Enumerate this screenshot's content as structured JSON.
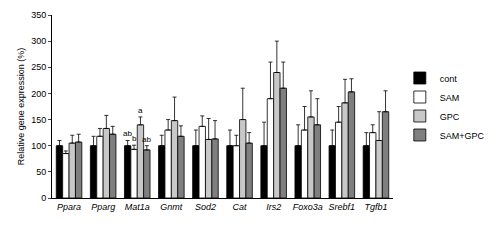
{
  "chart_data": {
    "type": "bar",
    "y_label": "Relative gene expression (%)",
    "categories": [
      "Ppara",
      "Pparg",
      "Mat1a",
      "Gnmt",
      "Sod2",
      "Cat",
      "Irs2",
      "Foxo3a",
      "Srebf1",
      "Tgfb1"
    ],
    "series": [
      {
        "name": "cont",
        "color": "#000000",
        "values": [
          100,
          100,
          100,
          100,
          100,
          100,
          100,
          100,
          100,
          100
        ],
        "errors": [
          10,
          18,
          10,
          20,
          30,
          30,
          45,
          40,
          30,
          25
        ]
      },
      {
        "name": "SAM",
        "color": "#ffffff",
        "values": [
          85,
          118,
          93,
          130,
          137,
          100,
          190,
          130,
          145,
          125
        ],
        "errors": [
          5,
          15,
          8,
          20,
          20,
          20,
          70,
          45,
          30,
          15
        ]
      },
      {
        "name": "GPC",
        "color": "#c8c8c8",
        "values": [
          105,
          133,
          140,
          148,
          112,
          150,
          240,
          155,
          182,
          110
        ],
        "errors": [
          15,
          25,
          15,
          45,
          40,
          60,
          60,
          50,
          45,
          55
        ]
      },
      {
        "name": "SAM+GPC",
        "color": "#7f7f7f",
        "values": [
          107,
          122,
          92,
          118,
          113,
          105,
          210,
          140,
          203,
          165
        ],
        "errors": [
          15,
          15,
          8,
          20,
          35,
          20,
          50,
          50,
          25,
          40
        ]
      }
    ],
    "annotations": [
      {
        "category": "Mat1a",
        "series": "cont",
        "text": "ab"
      },
      {
        "category": "Mat1a",
        "series": "SAM",
        "text": "b"
      },
      {
        "category": "Mat1a",
        "series": "GPC",
        "text": "a"
      },
      {
        "category": "Mat1a",
        "series": "SAM+GPC",
        "text": "ab"
      }
    ],
    "ylim": [
      0,
      350
    ],
    "yticks": [
      0,
      50,
      100,
      150,
      200,
      250,
      300,
      350
    ],
    "grid": false,
    "legend": "right"
  }
}
